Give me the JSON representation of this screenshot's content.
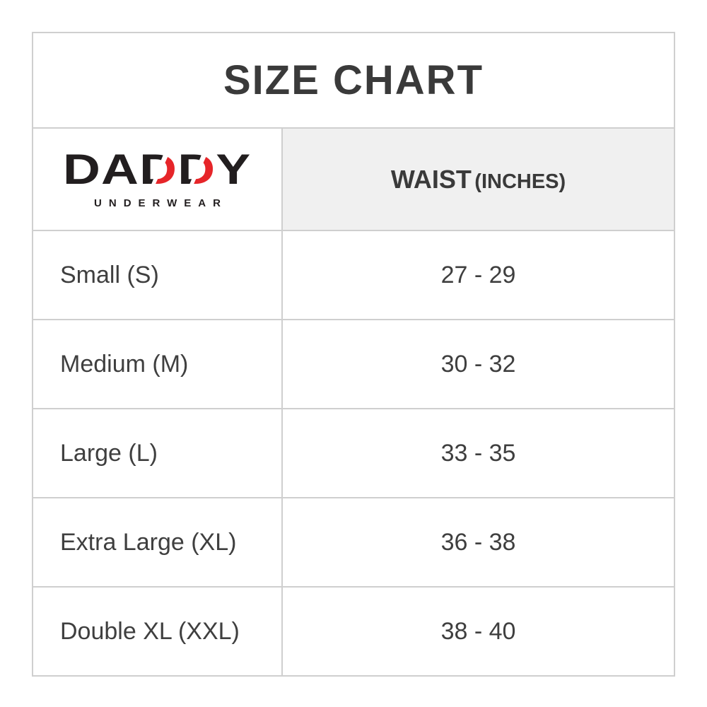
{
  "title": "SIZE CHART",
  "logo": {
    "part1": "DA",
    "d1": "D",
    "d2": "D",
    "part2": "Y",
    "subtitle": "UNDERWEAR"
  },
  "table": {
    "waist_header": "WAIST",
    "waist_header_sub": "(INCHES)",
    "rows": [
      {
        "size": "Small (S)",
        "waist": "27 - 29"
      },
      {
        "size": "Medium (M)",
        "waist": "30 - 32"
      },
      {
        "size": "Large (L)",
        "waist": "33 - 35"
      },
      {
        "size": "Extra Large (XL)",
        "waist": "36 - 38"
      },
      {
        "size": "Double XL (XXL)",
        "waist": "38 - 40"
      }
    ]
  },
  "colors": {
    "logo_black": "#221e1f",
    "logo_red": "#e62529",
    "text": "#3f3f3f",
    "border": "#cfcfcf",
    "header_bg": "#f0f0f0"
  }
}
